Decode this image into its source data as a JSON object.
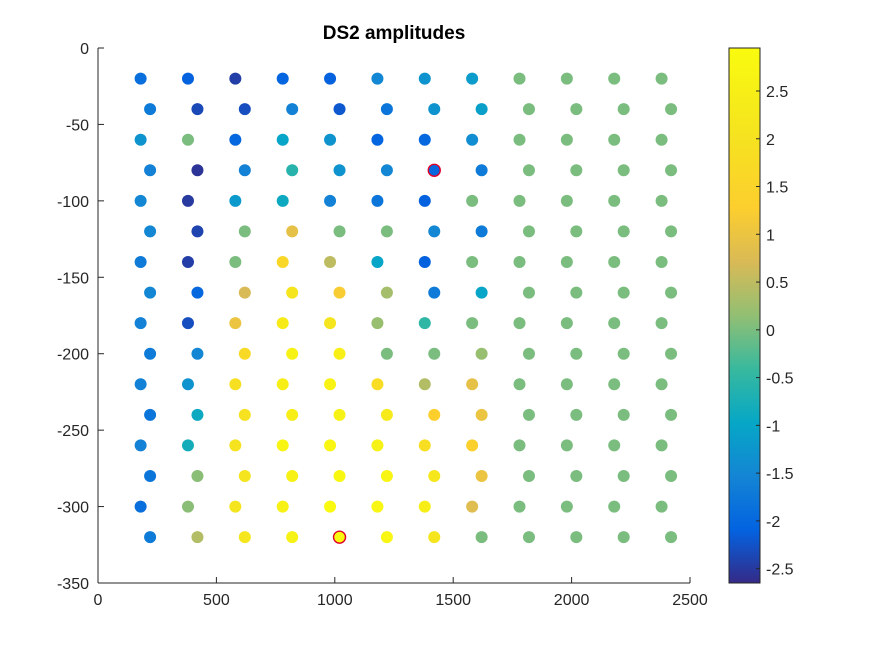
{
  "chart_data": {
    "type": "scatter",
    "title": "DS2 amplitudes",
    "xlabel": "",
    "ylabel": "",
    "xlim": [
      0,
      2500
    ],
    "ylim": [
      -350,
      0
    ],
    "x_ticks": [
      0,
      500,
      1000,
      1500,
      2000,
      2500
    ],
    "y_ticks": [
      0,
      -50,
      -100,
      -150,
      -200,
      -250,
      -300,
      -350
    ],
    "grid": false,
    "colormap": "parula",
    "colorbar": {
      "location": "right",
      "clim": [
        -2.65,
        2.95
      ],
      "ticks": [
        2.5,
        2,
        1.5,
        1,
        0.5,
        0,
        -0.5,
        -1,
        -1.5,
        -2,
        -2.5
      ]
    },
    "columns_x": [
      180,
      380,
      580,
      780,
      980,
      1180,
      1380,
      1580,
      1780,
      1980,
      2180,
      2380
    ],
    "rows": [
      {
        "y": -20,
        "x_offset": 0,
        "values": [
          -1.9,
          -2.1,
          -2.45,
          -2.05,
          -2.1,
          -1.5,
          -1.3,
          -1.15,
          0.0,
          0.0,
          0.0,
          0.0
        ]
      },
      {
        "y": -40,
        "x_offset": 40,
        "values": [
          -1.7,
          -2.35,
          -2.3,
          -1.6,
          -2.2,
          -1.8,
          -1.3,
          -1.1,
          0.0,
          0.0,
          0.0,
          0.0
        ]
      },
      {
        "y": -60,
        "x_offset": 0,
        "values": [
          -1.3,
          0.0,
          -2.0,
          -1.0,
          -1.3,
          -2.05,
          -2.0,
          -1.4,
          0.0,
          0.0,
          0.0,
          0.0
        ]
      },
      {
        "y": -80,
        "x_offset": 40,
        "values": [
          -1.6,
          -2.55,
          -1.6,
          -0.6,
          -1.3,
          -1.5,
          -2.0,
          -1.7,
          0.0,
          0.0,
          0.0,
          0.0
        ]
      },
      {
        "y": -100,
        "x_offset": 0,
        "values": [
          -1.5,
          -2.5,
          -1.2,
          -0.9,
          -1.6,
          -1.8,
          -2.1,
          0.0,
          0.0,
          0.0,
          0.0,
          0.0
        ]
      },
      {
        "y": -120,
        "x_offset": 40,
        "values": [
          -1.5,
          -2.4,
          0.0,
          0.9,
          0.0,
          0.0,
          -1.5,
          -1.7,
          0.0,
          0.0,
          0.0,
          0.0
        ]
      },
      {
        "y": -140,
        "x_offset": 0,
        "values": [
          -1.7,
          -2.45,
          0.0,
          1.6,
          0.5,
          -1.0,
          -2.1,
          0.0,
          0.0,
          0.0,
          0.0,
          0.0
        ]
      },
      {
        "y": -160,
        "x_offset": 40,
        "values": [
          -1.5,
          -2.0,
          0.7,
          2.1,
          1.2,
          0.3,
          -1.7,
          -1.0,
          0.0,
          0.0,
          0.0,
          0.0
        ]
      },
      {
        "y": -180,
        "x_offset": 0,
        "values": [
          -1.6,
          -2.3,
          1.0,
          2.35,
          2.1,
          0.2,
          -0.5,
          0.0,
          0.0,
          0.0,
          0.0,
          0.0
        ]
      },
      {
        "y": -200,
        "x_offset": 40,
        "values": [
          -1.7,
          -1.5,
          1.7,
          2.6,
          2.5,
          0.0,
          0.0,
          0.2,
          0.0,
          0.0,
          0.0,
          0.0
        ]
      },
      {
        "y": -220,
        "x_offset": 0,
        "values": [
          -1.6,
          -1.3,
          1.9,
          2.45,
          2.65,
          1.8,
          0.4,
          0.9,
          0.0,
          0.0,
          0.0,
          0.0
        ]
      },
      {
        "y": -240,
        "x_offset": 40,
        "values": [
          -1.8,
          -0.9,
          2.0,
          2.45,
          2.6,
          2.3,
          1.3,
          1.0,
          0.0,
          0.0,
          0.0,
          0.0
        ]
      },
      {
        "y": -260,
        "x_offset": 0,
        "values": [
          -1.6,
          -0.8,
          2.05,
          2.7,
          2.75,
          2.6,
          1.85,
          1.35,
          0.0,
          0.0,
          0.0,
          0.0
        ]
      },
      {
        "y": -280,
        "x_offset": 40,
        "values": [
          -1.8,
          0.1,
          2.1,
          2.55,
          2.8,
          2.7,
          2.2,
          1.0,
          0.0,
          0.0,
          0.0,
          0.0
        ]
      },
      {
        "y": -300,
        "x_offset": 0,
        "values": [
          -1.9,
          0.1,
          2.1,
          2.55,
          2.9,
          2.75,
          2.45,
          0.8,
          0.0,
          0.0,
          0.0,
          0.0
        ]
      },
      {
        "y": -320,
        "x_offset": 40,
        "values": [
          -1.7,
          0.4,
          2.15,
          2.6,
          2.95,
          2.75,
          2.1,
          0.0,
          0.0,
          0.0,
          0.0,
          0.0
        ]
      }
    ],
    "highlighted_points": [
      {
        "x": 1420,
        "y": -80,
        "outline": "#e0002a"
      },
      {
        "x": 1020,
        "y": -320,
        "outline": "#e0002a"
      }
    ]
  }
}
